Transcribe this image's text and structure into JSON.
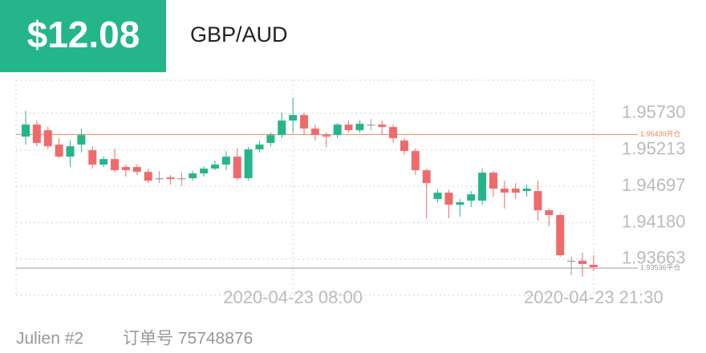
{
  "chart_data": {
    "type": "candlestick",
    "badge": "$12.08",
    "title": "GBP/AUD",
    "footer": [
      "Julien #2",
      "订单号 75748876"
    ],
    "categories": [
      null,
      null,
      null,
      null,
      null,
      null,
      null,
      null,
      null,
      null,
      null,
      null,
      null,
      null,
      null,
      null,
      null,
      null,
      null,
      null,
      null,
      null,
      null,
      null,
      "2020-04-23 08:00",
      null,
      null,
      null,
      null,
      null,
      null,
      null,
      null,
      null,
      null,
      null,
      null,
      null,
      null,
      null,
      null,
      null,
      null,
      null,
      null,
      null,
      null,
      null,
      null,
      null,
      null,
      "2020-04-23 21:30"
    ],
    "open": [
      1.954,
      1.95571,
      1.95491,
      1.95287,
      1.95116,
      1.95287,
      1.95207,
      1.95003,
      1.95082,
      1.94969,
      1.94969,
      1.949,
      1.9481,
      1.94821,
      1.9481,
      1.9481,
      1.94878,
      1.94946,
      1.95003,
      1.95116,
      1.9481,
      1.95219,
      1.9531,
      1.95423,
      1.95628,
      1.95707,
      1.95514,
      1.95423,
      1.95423,
      1.95571,
      1.95491,
      1.95571,
      1.95571,
      1.95537,
      1.95344,
      1.95196,
      1.94923,
      1.94514,
      1.94605,
      1.94434,
      1.94491,
      1.94491,
      1.94889,
      1.94662,
      1.94662,
      1.94628,
      1.94628,
      1.94355,
      1.94287,
      1.93639,
      1.93639,
      1.93582
    ],
    "high": [
      1.95764,
      1.95628,
      1.95537,
      1.95378,
      1.95344,
      1.95514,
      1.95264,
      1.95116,
      1.9523,
      1.95003,
      1.95003,
      1.94946,
      1.94912,
      1.94855,
      1.94889,
      1.94912,
      1.9498,
      1.9506,
      1.95196,
      1.9523,
      1.95253,
      1.95344,
      1.95457,
      1.95741,
      1.95946,
      1.95741,
      1.95571,
      1.95457,
      1.95594,
      1.95628,
      1.95628,
      1.9565,
      1.95628,
      1.95571,
      1.95378,
      1.9523,
      1.94946,
      1.9465,
      1.9465,
      1.94514,
      1.94628,
      1.94946,
      1.94912,
      1.94775,
      1.94741,
      1.94719,
      1.94775,
      1.94378,
      1.94309,
      1.93696,
      1.93753,
      1.93718
    ],
    "low": [
      1.95287,
      1.95264,
      1.9523,
      1.95094,
      1.94969,
      1.95173,
      1.94946,
      1.94969,
      1.94889,
      1.94832,
      1.94855,
      1.94741,
      1.94741,
      1.94719,
      1.94696,
      1.94775,
      1.94832,
      1.94923,
      1.94923,
      1.94775,
      1.94775,
      1.95173,
      1.95264,
      1.95378,
      1.95457,
      1.95423,
      1.95344,
      1.95253,
      1.95378,
      1.95457,
      1.95457,
      1.95491,
      1.95423,
      1.9531,
      1.95139,
      1.94855,
      1.94241,
      1.94469,
      1.94241,
      1.94264,
      1.944,
      1.94434,
      1.94548,
      1.94378,
      1.94514,
      1.94548,
      1.94207,
      1.94128,
      1.93696,
      1.93434,
      1.93412,
      1.93491
    ],
    "close": [
      1.95571,
      1.9531,
      1.95264,
      1.95116,
      1.95264,
      1.95423,
      1.95003,
      1.95082,
      1.94923,
      1.94923,
      1.949,
      1.94775,
      1.9481,
      1.94798,
      1.9481,
      1.94878,
      1.94946,
      1.95003,
      1.95116,
      1.9481,
      1.95219,
      1.95287,
      1.95423,
      1.95628,
      1.95707,
      1.95514,
      1.95423,
      1.954,
      1.95571,
      1.95491,
      1.95582,
      1.95571,
      1.95537,
      1.95378,
      1.95196,
      1.94923,
      1.94741,
      1.94605,
      1.94434,
      1.94469,
      1.94582,
      1.94889,
      1.94662,
      1.94605,
      1.94605,
      1.94662,
      1.94355,
      1.94287,
      1.93718,
      1.93639,
      1.93593,
      1.93548
    ],
    "up_color": "#25b58b",
    "down_color": "#ef6b6b",
    "neutral_color": "#9a9a9a",
    "ylim": [
      1.9315,
      1.962
    ],
    "yticks": [
      {
        "value": 1.9573,
        "label": "1.95730"
      },
      1.95213,
      1.94697,
      {
        "value": 1.9418,
        "label": "1.94180"
      },
      1.93663
    ],
    "grid": true,
    "lines": [
      {
        "value": 1.9543,
        "label": "1.95430开仓",
        "color": "#f0865c"
      },
      {
        "value": 1.93536,
        "label": "1.93536平仓",
        "color": "#9a9a9a"
      }
    ]
  }
}
